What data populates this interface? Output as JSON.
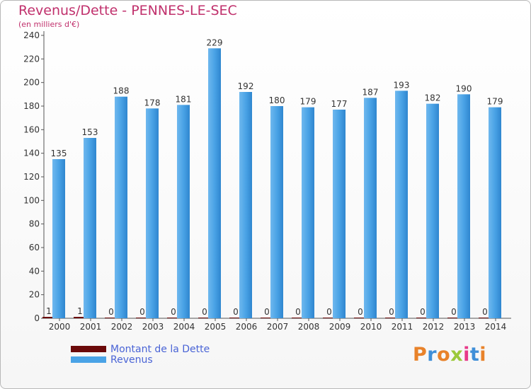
{
  "title": "Revenus/Dette - PENNES-LE-SEC",
  "subtitle": "(en milliers d'€)",
  "colors": {
    "title": "#c0306c",
    "dette": "#6b0a0a",
    "revenus": "#4aa3e6",
    "legend_text": "#4a64d6"
  },
  "legend": [
    {
      "label": "Montant de la Dette",
      "color": "#6b0a0a"
    },
    {
      "label": "Revenus",
      "color": "#4aa3e6"
    }
  ],
  "logo": {
    "text": "Proxiti",
    "letter_colors": [
      "#e8822a",
      "#3f8fd8",
      "#e8822a",
      "#9bc93a",
      "#e83a8a",
      "#3f8fd8",
      "#e8822a"
    ]
  },
  "chart_data": {
    "type": "bar",
    "categories": [
      "2000",
      "2001",
      "2002",
      "2003",
      "2004",
      "2005",
      "2006",
      "2007",
      "2008",
      "2009",
      "2010",
      "2011",
      "2012",
      "2013",
      "2014"
    ],
    "series": [
      {
        "name": "Montant de la Dette",
        "values": [
          1,
          1,
          0,
          0,
          0,
          0,
          0,
          0,
          0,
          0,
          0,
          0,
          0,
          0,
          0
        ]
      },
      {
        "name": "Revenus",
        "values": [
          135,
          153,
          188,
          178,
          181,
          229,
          192,
          180,
          179,
          177,
          187,
          193,
          182,
          190,
          179
        ]
      }
    ],
    "yticks": [
      0,
      20,
      40,
      60,
      80,
      100,
      120,
      140,
      160,
      180,
      200,
      220,
      240
    ],
    "ylim": [
      0,
      240
    ],
    "grid": false
  }
}
